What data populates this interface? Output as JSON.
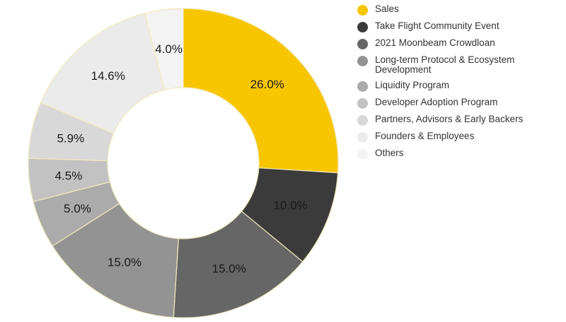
{
  "chart_data": {
    "type": "pie",
    "title": "",
    "legend_position": "right",
    "slices": [
      {
        "label": "Sales",
        "value": 26.0,
        "display": "26.0%",
        "color": "#f7c600"
      },
      {
        "label": "Take Flight Community Event",
        "value": 10.0,
        "display": "10.0%",
        "color": "#3b3b3b"
      },
      {
        "label": "2021 Moonbeam Crowdloan",
        "value": 15.0,
        "display": "15.0%",
        "color": "#666666"
      },
      {
        "label": "Long-term Protocol & Ecosystem Development",
        "value": 15.0,
        "display": "15.0%",
        "color": "#939393"
      },
      {
        "label": "Liquidity Program",
        "value": 5.0,
        "display": "5.0%",
        "color": "#ababab"
      },
      {
        "label": "Developer Adoption Program",
        "value": 4.5,
        "display": "4.5%",
        "color": "#c2c2c2"
      },
      {
        "label": "Partners, Advisors & Early Backers",
        "value": 5.9,
        "display": "5.9%",
        "color": "#d8d8d8"
      },
      {
        "label": "Founders & Employees",
        "value": 14.6,
        "display": "14.6%",
        "color": "#ebebeb"
      },
      {
        "label": "Others",
        "value": 4.0,
        "display": "4.0%",
        "color": "#f3f3f3"
      }
    ]
  }
}
